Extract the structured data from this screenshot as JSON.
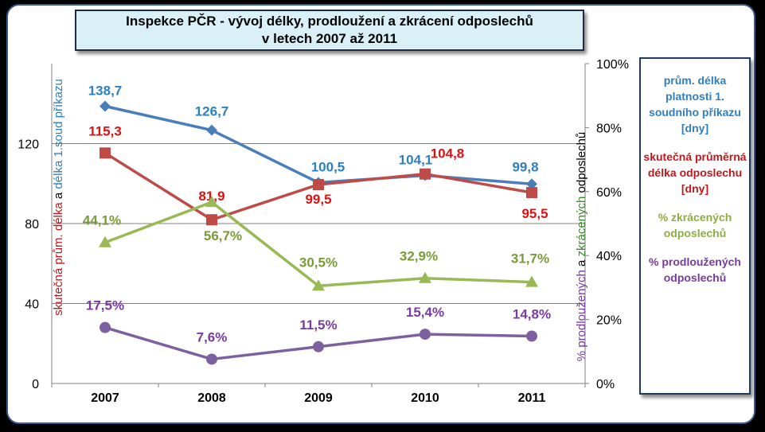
{
  "title": {
    "line1": "Inspekce PČR - vývoj  délky, prodloužení a zkrácení odposlechů",
    "line2": "v letech 2007 až 2011"
  },
  "legend": [
    {
      "text": "prům. délka platnosti 1. soudního příkazu [dny]",
      "color": "#2e7fbf"
    },
    {
      "text": "skutečná průměrná délka odposlechu [dny]",
      "color": "#c0171c"
    },
    {
      "text": "% zkrácených odposlechů",
      "color": "#8cae3e"
    },
    {
      "text": "% prodloužených odposlechů",
      "color": "#7a3aa0"
    }
  ],
  "chart_data": {
    "type": "line",
    "categories": [
      "2007",
      "2008",
      "2009",
      "2010",
      "2011"
    ],
    "left_axis": {
      "ylim": [
        0,
        160
      ],
      "ticks": [
        "0",
        "40",
        "80",
        "120"
      ],
      "label_parts": [
        {
          "text": "skutečná prům. délka",
          "color": "#c0171c"
        },
        {
          "text": " a ",
          "color": "#000000"
        },
        {
          "text": "délka 1.soud příkazu",
          "color": "#2e7fbf"
        }
      ]
    },
    "right_axis": {
      "ylim": [
        0,
        100
      ],
      "ticks": [
        "0%",
        "20%",
        "40%",
        "60%",
        "80%",
        "100%"
      ],
      "label_parts": [
        {
          "text": "% prodloužených",
          "color": "#7a3aa0"
        },
        {
          "text": " a ",
          "color": "#000000"
        },
        {
          "text": "zkrácených",
          "color": "#3a8a2a"
        },
        {
          "text": " odposlechů",
          "color": "#000000"
        }
      ]
    },
    "series": [
      {
        "key": "prikaz",
        "axis": "left",
        "values": [
          138.7,
          126.7,
          100.5,
          104.1,
          99.8
        ],
        "labels": [
          "138,7",
          "126,7",
          "100,5",
          "104,1",
          "99,8"
        ],
        "color": "#4a7ebb",
        "label_color": "#2e7fbf",
        "marker": "diamond"
      },
      {
        "key": "skutecna",
        "axis": "left",
        "values": [
          115.3,
          81.9,
          99.5,
          104.8,
          95.5
        ],
        "labels": [
          "115,3",
          "81,9",
          "99,5",
          "104,8",
          "95,5"
        ],
        "color": "#be4b48",
        "label_color": "#e01010",
        "marker": "square"
      },
      {
        "key": "zkracene",
        "axis": "right",
        "values": [
          44.1,
          56.7,
          30.5,
          32.9,
          31.7
        ],
        "labels": [
          "44,1%",
          "56,7%",
          "30,5%",
          "32,9%",
          "31,7%"
        ],
        "color": "#98b954",
        "label_color": "#7a9a3a",
        "marker": "triangle"
      },
      {
        "key": "prodlouzene",
        "axis": "right",
        "values": [
          17.5,
          7.6,
          11.5,
          15.4,
          14.8
        ],
        "labels": [
          "17,5%",
          "7,6%",
          "11,5%",
          "15,4%",
          "14,8%"
        ],
        "color": "#7d60a0",
        "label_color": "#7a3aa0",
        "marker": "circle"
      }
    ]
  }
}
